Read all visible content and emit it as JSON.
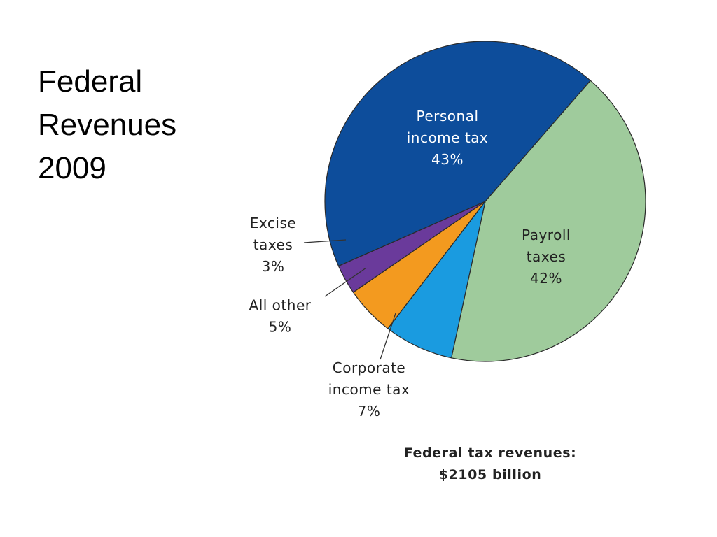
{
  "slide": {
    "title_lines": [
      "Federal",
      "Revenues",
      "2009"
    ]
  },
  "chart_data": {
    "type": "pie",
    "unit": "%",
    "slices": [
      {
        "label_lines": [
          "Personal",
          "income tax"
        ],
        "value": 43,
        "value_label": "43%",
        "color": "#0d4d9b"
      },
      {
        "label_lines": [
          "Payroll",
          "taxes"
        ],
        "value": 42,
        "value_label": "42%",
        "color": "#9fcb9c"
      },
      {
        "label_lines": [
          "Corporate",
          "income tax"
        ],
        "value": 7,
        "value_label": "7%",
        "color": "#1a9be0"
      },
      {
        "label_lines": [
          "All other"
        ],
        "value": 5,
        "value_label": "5%",
        "color": "#f39a1f"
      },
      {
        "label_lines": [
          "Excise",
          "taxes"
        ],
        "value": 3,
        "value_label": "3%",
        "color": "#6a3a9b"
      }
    ],
    "footer_lines": [
      "Federal tax revenues:",
      "$2105 billion"
    ]
  }
}
